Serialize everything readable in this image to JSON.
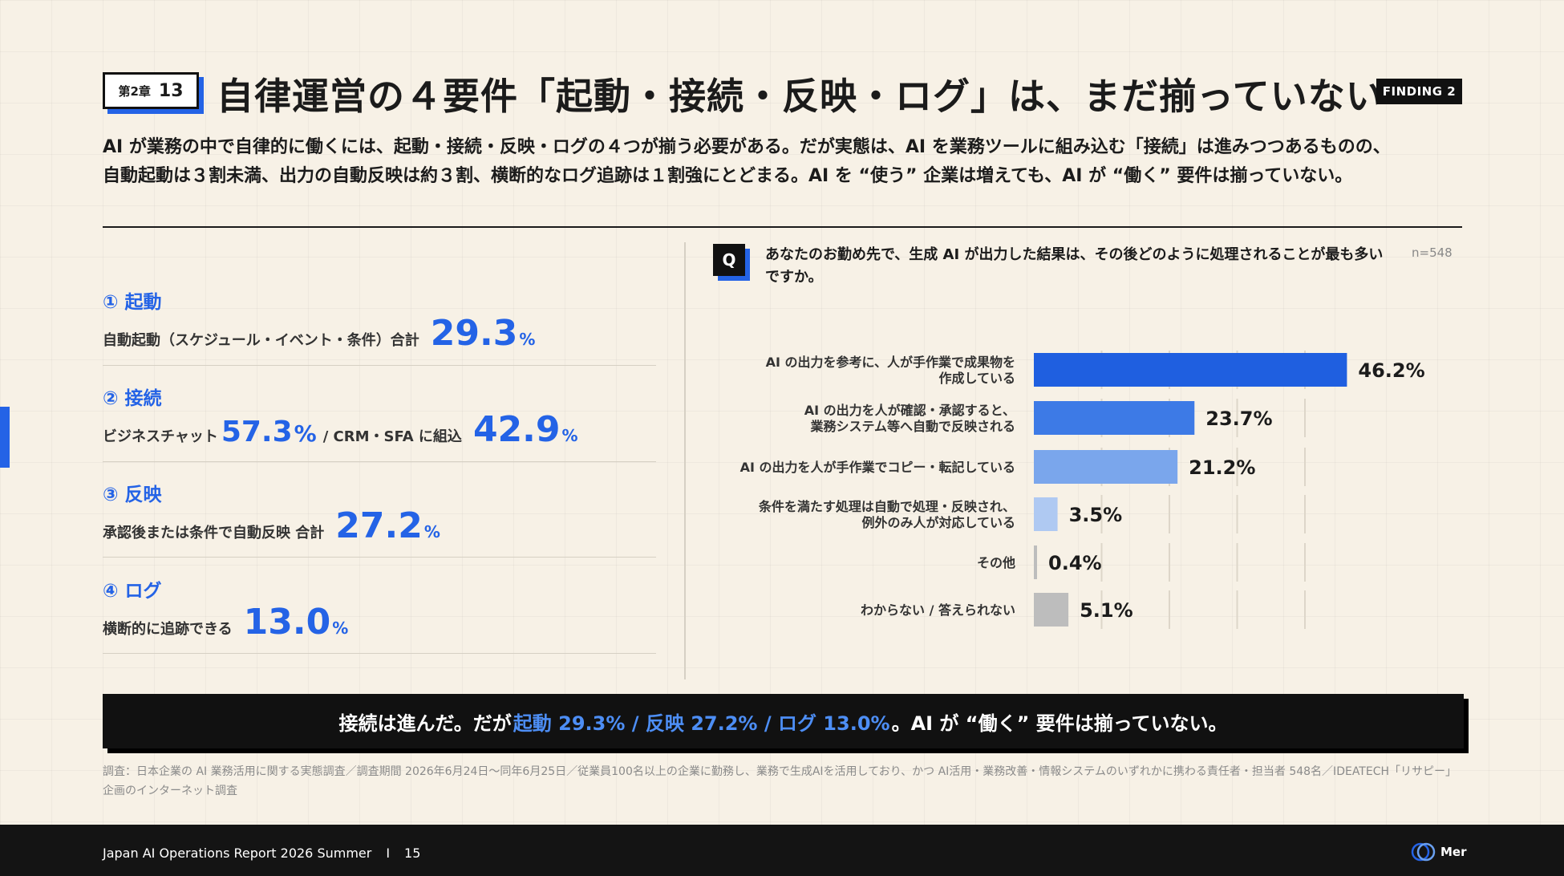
{
  "header": {
    "chapter_label": "第2章",
    "chapter_number": "13",
    "title": "自律運営の４要件「起動・接続・反映・ログ」は、まだ揃っていない",
    "finding_badge": "FINDING 2",
    "lead": "AI が業務の中で自律的に働くには、起動・接続・反映・ログの４つが揃う必要がある。だが実態は、AI を業務ツールに組み込む「接続」は進みつつあるものの、自動起動は３割未満、出力の自動反映は約３割、横断的なログ追跡は１割強にとどまる。AI を “使う” 企業は増えても、AI が “働く” 要件は揃っていない。"
  },
  "metrics": [
    {
      "heading": "① 起動",
      "label": "自動起動（スケジュール・イベント・条件）合計",
      "value": "29.3",
      "unit": "%"
    },
    {
      "heading": "② 接続",
      "label1": "ビジネスチャット",
      "value1": "57.3",
      "unit1": "%",
      "sep": "/ CRM・SFA に組込",
      "value2": "42.9",
      "unit2": "%"
    },
    {
      "heading": "③ 反映",
      "label": "承認後または条件で自動反映 合計",
      "value": "27.2",
      "unit": "%"
    },
    {
      "heading": "④ ログ",
      "label": "横断的に追跡できる",
      "value": "13.0",
      "unit": "%"
    }
  ],
  "question": {
    "badge": "Q",
    "text": "あなたのお勤め先で、生成 AI が出力した結果は、その後どのように処理されることが最も多いですか。",
    "n": "n=548"
  },
  "chart_data": {
    "type": "bar",
    "orientation": "horizontal",
    "categories": [
      [
        "AI の出力を参考に、人が手作業で成果物を",
        "作成している"
      ],
      [
        "AI の出力を人が確認・承認すると、",
        "業務システム等へ自動で反映される"
      ],
      [
        "AI の出力を人が手作業でコピー・転記している"
      ],
      [
        "条件を満たす処理は自動で処理・反映され、",
        "例外のみ人が対応している"
      ],
      [
        "その他"
      ],
      [
        "わからない / 答えられない"
      ]
    ],
    "values": [
      46.2,
      23.7,
      21.2,
      3.5,
      0.4,
      5.1
    ],
    "value_labels": [
      "46.2%",
      "23.7%",
      "21.2%",
      "3.5%",
      "0.4%",
      "5.1%"
    ],
    "colors": [
      "#1f5fe0",
      "#3d7ae6",
      "#7aa6ec",
      "#afc9f2",
      "#bdbdbd",
      "#bdbdbd"
    ],
    "xlim": [
      0,
      50
    ],
    "grid": true
  },
  "banner": {
    "pre": "接続は進んだ。だが",
    "highlight": "起動 29.3% / 反映 27.2% / ログ 13.0%",
    "post": "。AI が “働く” 要件は揃っていない。"
  },
  "source": "調査：日本企業の AI 業務活用に関する実態調査／調査期間 2026年6月24日〜同年6月25日／従業員100名以上の企業に勤務し、業務で生成AIを活用しており、かつ AI活用・業務改善・情報システムのいずれかに携わる責任者・担当者 548名／IDEATECH「リサピー」企画のインターネット調査",
  "footer": {
    "report": "Japan AI Operations Report 2026 Summer",
    "divider": "I",
    "page": "15",
    "logo_text": "Mer"
  }
}
